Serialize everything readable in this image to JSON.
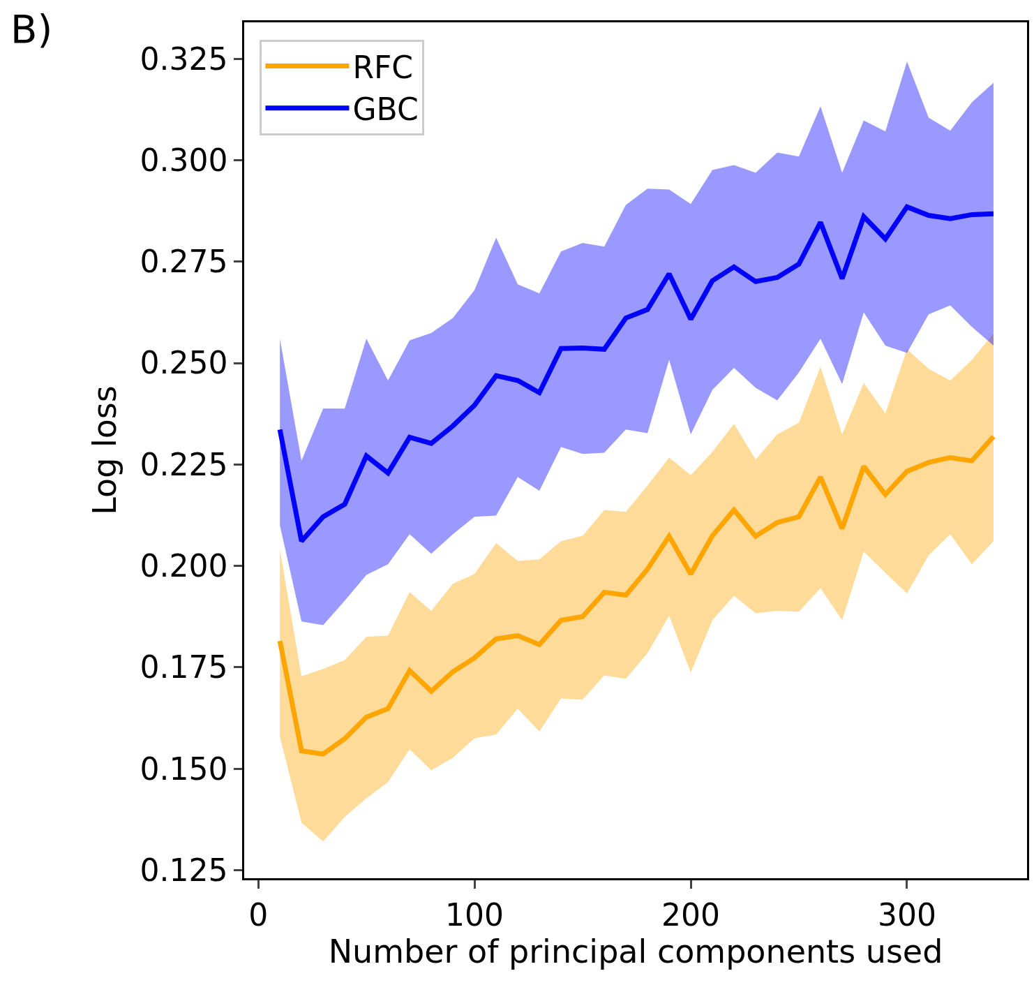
{
  "chart_data": {
    "type": "line",
    "xlabel": "Number of principal components used",
    "ylabel": "Log loss",
    "annotations": [
      "B)"
    ],
    "x": [
      10,
      20,
      30,
      40,
      50,
      60,
      70,
      80,
      90,
      100,
      110,
      120,
      130,
      140,
      150,
      160,
      170,
      180,
      190,
      200,
      210,
      220,
      230,
      240,
      250,
      260,
      270,
      280,
      290,
      300,
      310,
      320,
      330,
      340
    ],
    "series": [
      {
        "name": "RFC",
        "color": "#ffa500",
        "values": [
          0.1815,
          0.1544,
          0.1536,
          0.1574,
          0.1627,
          0.1648,
          0.1742,
          0.1691,
          0.1739,
          0.1773,
          0.182,
          0.1828,
          0.1806,
          0.1866,
          0.1875,
          0.1935,
          0.1928,
          0.1992,
          0.2073,
          0.198,
          0.2074,
          0.2138,
          0.2073,
          0.2107,
          0.2121,
          0.2219,
          0.2092,
          0.2245,
          0.2176,
          0.2233,
          0.2255,
          0.2267,
          0.2259,
          0.2319
        ],
        "lower": [
          0.1579,
          0.1367,
          0.1321,
          0.1381,
          0.1427,
          0.1467,
          0.1548,
          0.1496,
          0.1527,
          0.1575,
          0.1584,
          0.1648,
          0.1592,
          0.1673,
          0.167,
          0.173,
          0.1722,
          0.1785,
          0.1877,
          0.1737,
          0.1866,
          0.1926,
          0.1883,
          0.1889,
          0.1887,
          0.1945,
          0.1866,
          0.2035,
          0.1983,
          0.1932,
          0.2026,
          0.2078,
          0.2004,
          0.2061
        ],
        "upper": [
          0.204,
          0.1728,
          0.1746,
          0.1768,
          0.1825,
          0.1828,
          0.1935,
          0.1889,
          0.1956,
          0.198,
          0.2056,
          0.2012,
          0.2016,
          0.2061,
          0.2074,
          0.2138,
          0.2133,
          0.2198,
          0.2267,
          0.2224,
          0.2281,
          0.235,
          0.2262,
          0.2324,
          0.2353,
          0.2491,
          0.2324,
          0.2451,
          0.2376,
          0.2534,
          0.2486,
          0.2457,
          0.2508,
          0.2572
        ]
      },
      {
        "name": "GBC",
        "color": "#0000ff",
        "values": [
          0.2336,
          0.2061,
          0.2121,
          0.2152,
          0.2271,
          0.2229,
          0.2317,
          0.2302,
          0.2345,
          0.2396,
          0.2469,
          0.2457,
          0.2427,
          0.2536,
          0.2537,
          0.2534,
          0.2611,
          0.2632,
          0.272,
          0.2608,
          0.2703,
          0.2737,
          0.2701,
          0.2711,
          0.2744,
          0.2847,
          0.2708,
          0.2861,
          0.2806,
          0.2885,
          0.2864,
          0.2856,
          0.2866,
          0.2868
        ],
        "lower": [
          0.21,
          0.1863,
          0.1854,
          0.1914,
          0.1978,
          0.2004,
          0.2078,
          0.203,
          0.2078,
          0.2121,
          0.2124,
          0.2219,
          0.2185,
          0.2293,
          0.2276,
          0.2279,
          0.2336,
          0.2327,
          0.2508,
          0.2324,
          0.2434,
          0.2488,
          0.2439,
          0.2408,
          0.2477,
          0.256,
          0.2448,
          0.2625,
          0.2543,
          0.2525,
          0.262,
          0.2642,
          0.2589,
          0.2543
        ],
        "upper": [
          0.256,
          0.2259,
          0.2388,
          0.2388,
          0.256,
          0.2457,
          0.2556,
          0.2574,
          0.2611,
          0.268,
          0.2809,
          0.2694,
          0.2672,
          0.2775,
          0.2796,
          0.2787,
          0.289,
          0.293,
          0.2928,
          0.2892,
          0.2976,
          0.2988,
          0.2969,
          0.3019,
          0.3009,
          0.3133,
          0.2969,
          0.3098,
          0.3071,
          0.3243,
          0.3105,
          0.3073,
          0.3143,
          0.3191
        ]
      }
    ],
    "xlim": [
      -6.5,
      355.5
    ],
    "xticks": [
      0,
      100,
      200,
      300
    ],
    "ylim": [
      0.123,
      0.334
    ],
    "yticks": [
      {
        "value": 0.125,
        "label": "0.125"
      },
      {
        "value": 0.15,
        "label": "0.150"
      },
      {
        "value": 0.175,
        "label": "0.175"
      },
      {
        "value": 0.2,
        "label": "0.200"
      },
      {
        "value": 0.225,
        "label": "0.225"
      },
      {
        "value": 0.25,
        "label": "0.250"
      },
      {
        "value": 0.275,
        "label": "0.275"
      },
      {
        "value": 0.3,
        "label": "0.300"
      },
      {
        "value": 0.325,
        "label": "0.325"
      }
    ],
    "legend": "top left",
    "marker": "none",
    "line_style": "solid"
  }
}
